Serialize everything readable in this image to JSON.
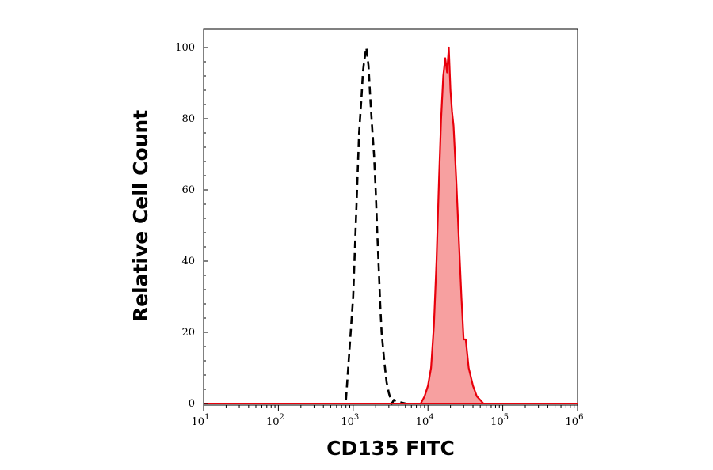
{
  "chart_data": {
    "type": "area",
    "title": "",
    "xlabel": "CD135 FITC",
    "ylabel": "Relative Cell Count",
    "x_scale": "log",
    "xlim": [
      10,
      1000000
    ],
    "ylim": [
      0,
      100
    ],
    "x_ticks": [
      {
        "value": 10,
        "base": "10",
        "exp": "1"
      },
      {
        "value": 100,
        "base": "10",
        "exp": "2"
      },
      {
        "value": 1000,
        "base": "10",
        "exp": "3"
      },
      {
        "value": 10000,
        "base": "10",
        "exp": "4"
      },
      {
        "value": 100000,
        "base": "10",
        "exp": "5"
      },
      {
        "value": 1000000,
        "base": "10",
        "exp": "6"
      }
    ],
    "y_ticks": [
      "0",
      "20",
      "40",
      "60",
      "80",
      "100"
    ],
    "grid": false,
    "legend": "none",
    "series": [
      {
        "style": "dashed-line",
        "color": "#000000",
        "x": [
          3300,
          800,
          1000,
          1200,
          1300,
          1350,
          1400,
          1450,
          1500,
          1600,
          1700,
          1800,
          1900,
          2000,
          2100,
          2200,
          2300,
          2400,
          2600,
          2800,
          3000,
          3500,
          4000,
          5000
        ],
        "y": [
          0,
          1,
          30,
          76,
          87,
          93,
          96,
          98,
          100,
          95,
          85,
          77,
          70,
          60,
          48,
          38,
          28,
          20,
          12,
          6,
          3,
          1,
          0.5,
          0
        ]
      },
      {
        "style": "filled-area",
        "color": "#e8000b",
        "fill": "#f7a0a0",
        "x": [
          8000,
          9000,
          10000,
          11000,
          12000,
          13000,
          14000,
          15000,
          16000,
          17000,
          18000,
          19000,
          20000,
          21000,
          22000,
          23000,
          24000,
          26000,
          28000,
          30000,
          32000,
          35000,
          40000,
          45000,
          50000,
          55000
        ],
        "y": [
          0,
          2,
          5,
          10,
          22,
          40,
          62,
          80,
          92,
          97,
          93,
          100,
          88,
          82,
          78,
          70,
          62,
          45,
          30,
          18,
          18,
          10,
          5,
          2,
          1,
          0
        ]
      }
    ]
  }
}
